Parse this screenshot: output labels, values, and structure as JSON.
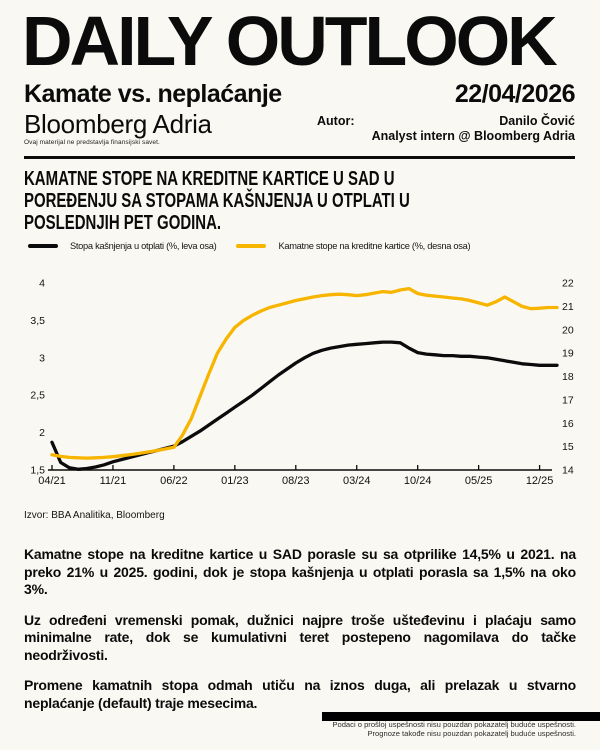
{
  "header": {
    "title": "DAILY OUTLOOK",
    "subtitle": "Kamate vs. neplaćanje",
    "date": "22/04/2026",
    "brand": "Bloomberg Adria",
    "author_label": "Autor:",
    "author_name": "Danilo Čović",
    "author_role": "Analyst intern @ Bloomberg Adria",
    "disclaimer": "Ovaj materijal ne predstavlja finansijski savet."
  },
  "article": {
    "headline_lines": [
      "KAMATNE STOPE NA KREDITNE KARTICE U SAD U",
      "POREĐENJU SA STOPAMA KAŠNJENJA U OTPLATI U",
      "POSLEDNJIH PET GODINA."
    ],
    "source": "Izvor: BBA Analitika, Bloomberg",
    "paragraphs": [
      [
        "Kamatne stope na kreditne kartice u SAD porasle su sa otprilike 14,5% u 2021. na",
        "preko 21% u 2025. godini, dok je stopa kašnjenja u otplati porasla sa 1,5% na oko",
        "3%."
      ],
      [
        "Uz određeni vremenski pomak, dužnici najpre troše ušteđevinu i plaćaju samo",
        "minimalne rate, dok se kumulativni teret postepeno nagomilava do tačke",
        "neodrživosti."
      ],
      [
        "Promene kamatnih stopa odmah utiču na iznos duga, ali prelazak u stvarno",
        "neplaćanje (default) traje mesecima."
      ]
    ]
  },
  "chart_data": {
    "type": "line",
    "title": "Kamatne stope na kreditne kartice u SAD u poređenju sa stopama kašnjenja u otplati u poslednjih pet godina",
    "x_unit": "month",
    "x_start": "04/21",
    "x_end": "02/26",
    "x_tick_labels": [
      "04/21",
      "11/21",
      "06/22",
      "01/23",
      "08/23",
      "03/24",
      "10/24",
      "05/25",
      "12/25"
    ],
    "tick_every": 7,
    "grid": false,
    "legend_position": "top-left",
    "left_axis": {
      "label": "Stopa kašnjenja u otplati (%)",
      "min": 1.5,
      "max": 4,
      "ticks": [
        "4",
        "3,5",
        "3",
        "2,5",
        "2",
        "1,5"
      ],
      "tick_values": [
        4,
        3.5,
        3,
        2.5,
        2,
        1.5
      ]
    },
    "right_axis": {
      "label": "Kamatne stope na kreditne kartice (%)",
      "min": 14,
      "max": 22,
      "ticks": [
        "22",
        "21",
        "20",
        "19",
        "18",
        "17",
        "16",
        "15",
        "14"
      ],
      "tick_values": [
        22,
        21,
        20,
        19,
        18,
        17,
        16,
        15,
        14
      ]
    },
    "series": [
      {
        "name": "Stopa kašnjenja u otplati (%, leva osa)",
        "axis": "left",
        "color": "#0b0b0b",
        "values": [
          1.87,
          1.6,
          1.53,
          1.51,
          1.52,
          1.54,
          1.57,
          1.61,
          1.64,
          1.67,
          1.7,
          1.73,
          1.76,
          1.79,
          1.82,
          1.88,
          1.95,
          2.02,
          2.1,
          2.18,
          2.26,
          2.34,
          2.42,
          2.5,
          2.59,
          2.68,
          2.77,
          2.85,
          2.93,
          3.0,
          3.06,
          3.1,
          3.13,
          3.15,
          3.17,
          3.18,
          3.19,
          3.2,
          3.21,
          3.21,
          3.2,
          3.13,
          3.07,
          3.05,
          3.04,
          3.03,
          3.03,
          3.02,
          3.02,
          3.01,
          3.0,
          2.98,
          2.96,
          2.94,
          2.92,
          2.91,
          2.9,
          2.9,
          2.9
        ]
      },
      {
        "name": "Kamatne stope na kreditne kartice (%, desna osa)",
        "axis": "right",
        "color": "#F7B500",
        "values": [
          14.65,
          14.58,
          14.54,
          14.52,
          14.51,
          14.52,
          14.54,
          14.57,
          14.61,
          14.66,
          14.71,
          14.77,
          14.83,
          14.9,
          14.97,
          15.5,
          16.2,
          17.15,
          18.1,
          19.0,
          19.6,
          20.1,
          20.4,
          20.62,
          20.8,
          20.95,
          21.05,
          21.15,
          21.25,
          21.33,
          21.4,
          21.46,
          21.5,
          21.52,
          21.5,
          21.46,
          21.5,
          21.57,
          21.63,
          21.6,
          21.7,
          21.76,
          21.55,
          21.48,
          21.44,
          21.4,
          21.36,
          21.32,
          21.25,
          21.15,
          21.05,
          21.2,
          21.4,
          21.2,
          21.0,
          20.9,
          20.92,
          20.95,
          20.95
        ]
      }
    ]
  },
  "footer": {
    "line1": "Podaci o prošloj uspešnosti nisu pouzdan pokazatelj buduće uspešnosti.",
    "line2": "Prognoze takođe nisu pouzdan pokazatelj buduće uspešnosti."
  },
  "colors": {
    "background": "#FAF8F2",
    "accent_yellow": "#F7B500",
    "ink": "#0b0b0b"
  }
}
